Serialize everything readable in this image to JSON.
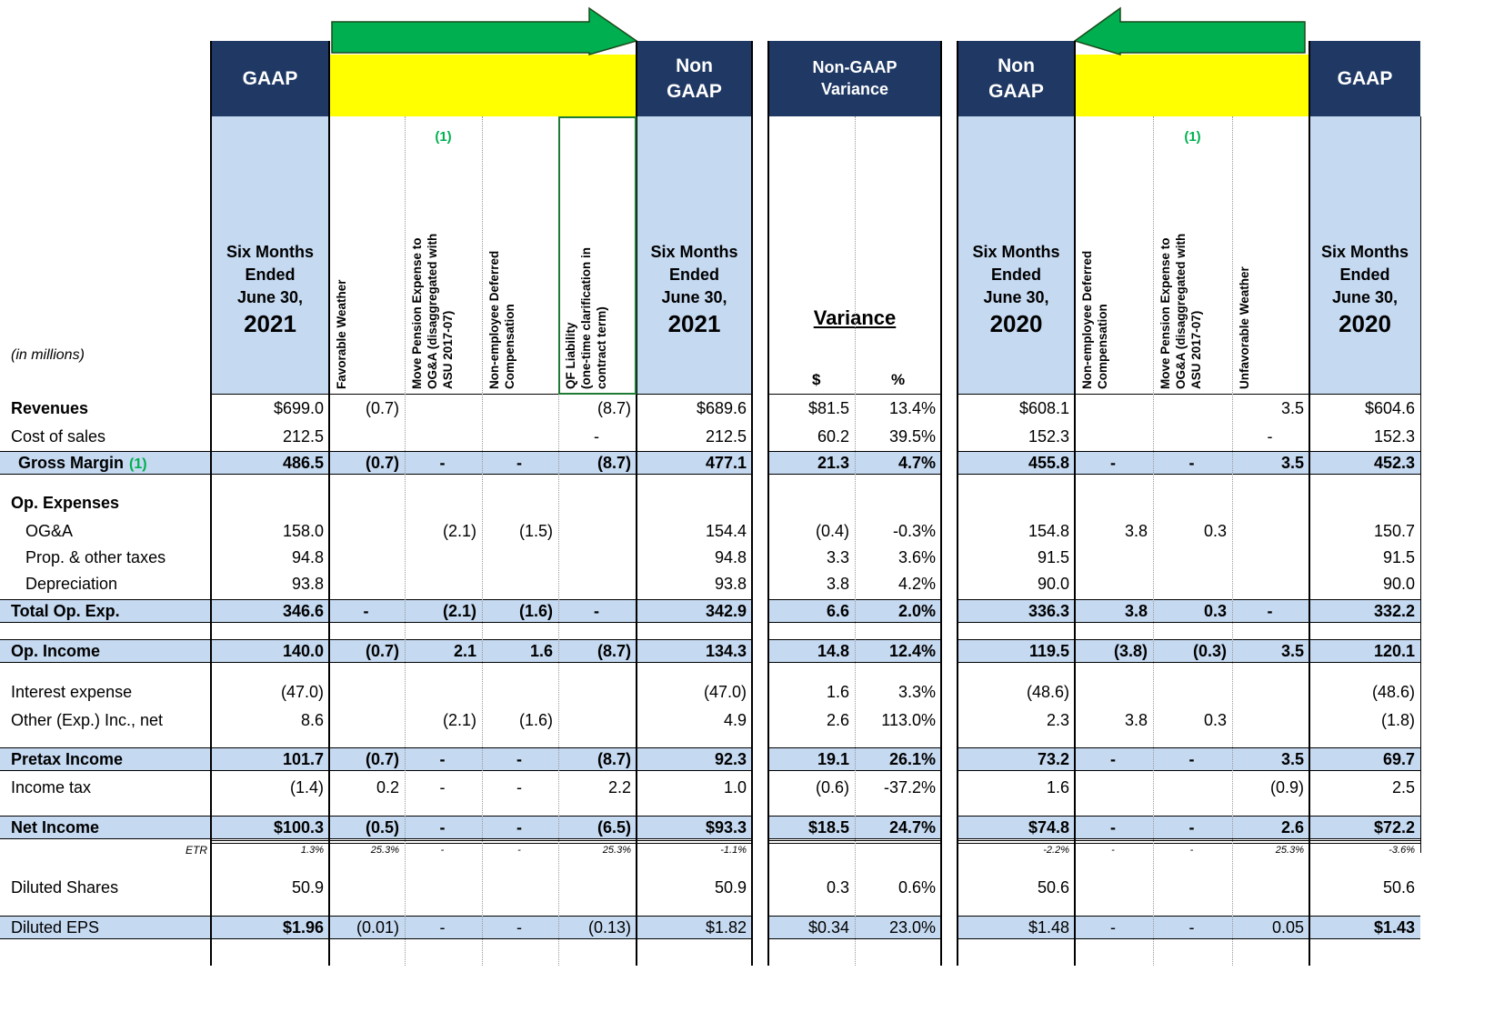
{
  "units_label": "(in millions)",
  "headers": {
    "gaap_2021": "GAAP",
    "non_gaap_2021": [
      "Non",
      "GAAP"
    ],
    "variance_top": [
      "Non-GAAP",
      "Variance"
    ],
    "non_gaap_2020": [
      "Non",
      "GAAP"
    ],
    "gaap_2020": "GAAP",
    "variance_title": "Variance"
  },
  "columns": [
    {
      "period": [
        "Six Months",
        "Ended",
        "June 30,"
      ],
      "year": "2021"
    },
    {
      "adjustment": [
        "Favorable Weather"
      ]
    },
    {
      "note": "(1)",
      "adjustment": [
        "Move Pension Expense to",
        "OG&A (disaggregated with",
        "ASU 2017-07)"
      ]
    },
    {
      "adjustment": [
        "Non-employee Deferred",
        "Compensation"
      ]
    },
    {
      "adjustment": [
        "QF Liability",
        "(one-time clarification in",
        "contract term)"
      ]
    },
    {
      "period": [
        "Six Months",
        "Ended",
        "June 30,"
      ],
      "year": "2021"
    },
    {
      "sub": "$"
    },
    {
      "sub": "%"
    },
    {
      "period": [
        "Six Months",
        "Ended",
        "June 30,"
      ],
      "year": "2020"
    },
    {
      "adjustment": [
        "Non-employee Deferred",
        "Compensation"
      ]
    },
    {
      "note": "(1)",
      "adjustment": [
        "Move Pension Expense to",
        "OG&A (disaggregated with",
        "ASU 2017-07)"
      ]
    },
    {
      "adjustment": [
        "Unfavorable Weather"
      ]
    },
    {
      "period": [
        "Six Months",
        "Ended",
        "June 30,"
      ],
      "year": "2020"
    }
  ],
  "rows": [
    {
      "label": "Revenues",
      "cells": [
        "$699.0",
        "(0.7)",
        null,
        null,
        "(8.7)",
        "$689.6",
        "$81.5",
        "13.4%",
        "$608.1",
        null,
        null,
        "3.5",
        "$604.6"
      ]
    },
    {
      "label": "Cost of sales",
      "cells": [
        "212.5",
        null,
        null,
        null,
        "-",
        "212.5",
        "60.2",
        "39.5%",
        "152.3",
        null,
        null,
        "-",
        "152.3"
      ]
    },
    {
      "label": "Gross Margin",
      "note": "(1)",
      "cells": [
        "486.5",
        "(0.7)",
        "-",
        "-",
        "(8.7)",
        "477.1",
        "21.3",
        "4.7%",
        "455.8",
        "-",
        "-",
        "3.5",
        "452.3"
      ]
    },
    {
      "label": "Op. Expenses",
      "cells": [
        null,
        null,
        null,
        null,
        null,
        null,
        null,
        null,
        null,
        null,
        null,
        null,
        null
      ]
    },
    {
      "label": "OG&A",
      "cells": [
        "158.0",
        null,
        "(2.1)",
        "(1.5)",
        null,
        "154.4",
        "(0.4)",
        "-0.3%",
        "154.8",
        "3.8",
        "0.3",
        null,
        "150.7"
      ]
    },
    {
      "label": "Prop. & other taxes",
      "cells": [
        "94.8",
        null,
        null,
        null,
        null,
        "94.8",
        "3.3",
        "3.6%",
        "91.5",
        null,
        null,
        null,
        "91.5"
      ]
    },
    {
      "label": "Depreciation",
      "cells": [
        "93.8",
        null,
        null,
        null,
        null,
        "93.8",
        "3.8",
        "4.2%",
        "90.0",
        null,
        null,
        null,
        "90.0"
      ]
    },
    {
      "label": "Total Op. Exp.",
      "cells": [
        "346.6",
        "-",
        "(2.1)",
        "(1.6)",
        "-",
        "342.9",
        "6.6",
        "2.0%",
        "336.3",
        "3.8",
        "0.3",
        "-",
        "332.2"
      ]
    },
    {
      "label": "Op. Income",
      "cells": [
        "140.0",
        "(0.7)",
        "2.1",
        "1.6",
        "(8.7)",
        "134.3",
        "14.8",
        "12.4%",
        "119.5",
        "(3.8)",
        "(0.3)",
        "3.5",
        "120.1"
      ]
    },
    {
      "label": "Interest expense",
      "cells": [
        "(47.0)",
        null,
        null,
        null,
        null,
        "(47.0)",
        "1.6",
        "3.3%",
        "(48.6)",
        null,
        null,
        null,
        "(48.6)"
      ]
    },
    {
      "label": "Other (Exp.) Inc., net",
      "cells": [
        "8.6",
        null,
        "(2.1)",
        "(1.6)",
        null,
        "4.9",
        "2.6",
        "113.0%",
        "2.3",
        "3.8",
        "0.3",
        null,
        "(1.8)"
      ]
    },
    {
      "label": "Pretax Income",
      "cells": [
        "101.7",
        "(0.7)",
        "-",
        "-",
        "(8.7)",
        "92.3",
        "19.1",
        "26.1%",
        "73.2",
        "-",
        "-",
        "3.5",
        "69.7"
      ]
    },
    {
      "label": "Income tax",
      "cells": [
        "(1.4)",
        "0.2",
        "-",
        "-",
        "2.2",
        "1.0",
        "(0.6)",
        "-37.2%",
        "1.6",
        null,
        null,
        "(0.9)",
        "2.5"
      ]
    },
    {
      "label": "Net Income",
      "cells": [
        "$100.3",
        "(0.5)",
        "-",
        "-",
        "(6.5)",
        "$93.3",
        "$18.5",
        "24.7%",
        "$74.8",
        "-",
        "-",
        "2.6",
        "$72.2"
      ]
    },
    {
      "label": "ETR",
      "cells": [
        "1.3%",
        "25.3%",
        "-",
        "-",
        "25.3%",
        "-1.1%",
        null,
        null,
        "-2.2%",
        "-",
        "-",
        "25.3%",
        "-3.6%"
      ]
    },
    {
      "label": "Diluted Shares",
      "cells": [
        "50.9",
        null,
        null,
        null,
        null,
        "50.9",
        "0.3",
        "0.6%",
        "50.6",
        null,
        null,
        null,
        "50.6"
      ]
    },
    {
      "label": "Diluted EPS",
      "cells": [
        "$1.96",
        "(0.01)",
        "-",
        "-",
        "(0.13)",
        "$1.82",
        "$0.34",
        "23.0%",
        "$1.48",
        "-",
        "-",
        "0.05",
        "$1.43"
      ]
    }
  ]
}
